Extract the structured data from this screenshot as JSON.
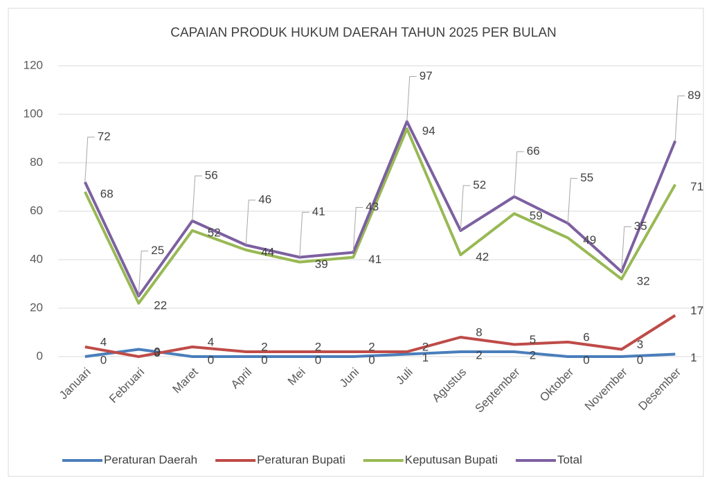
{
  "chart_data": {
    "type": "line",
    "title": "CAPAIAN PRODUK HUKUM DAERAH TAHUN 2025 PER BULAN",
    "categories": [
      "Januari",
      "Februari",
      "Maret",
      "April",
      "Mei",
      "Juni",
      "Juli",
      "Agustus",
      "September",
      "Oktober",
      "November",
      "Desember"
    ],
    "series": [
      {
        "name": "Peraturan Daerah",
        "color": "#4a7ebb",
        "values": [
          0,
          3,
          0,
          0,
          0,
          0,
          1,
          2,
          2,
          0,
          0,
          1
        ]
      },
      {
        "name": "Peraturan Bupati",
        "color": "#be4b48",
        "values": [
          4,
          0,
          4,
          2,
          2,
          2,
          2,
          8,
          5,
          6,
          3,
          17
        ]
      },
      {
        "name": "Keputusan Bupati",
        "color": "#98b954",
        "values": [
          68,
          22,
          52,
          44,
          39,
          41,
          94,
          42,
          59,
          49,
          32,
          71
        ]
      },
      {
        "name": "Total",
        "color": "#7d60a0",
        "values": [
          72,
          25,
          56,
          46,
          41,
          43,
          97,
          52,
          66,
          55,
          35,
          89
        ]
      }
    ],
    "ylim": [
      0,
      120
    ],
    "yticks": [
      0,
      20,
      40,
      60,
      80,
      100,
      120
    ],
    "grid": true,
    "legend": "bottom"
  }
}
